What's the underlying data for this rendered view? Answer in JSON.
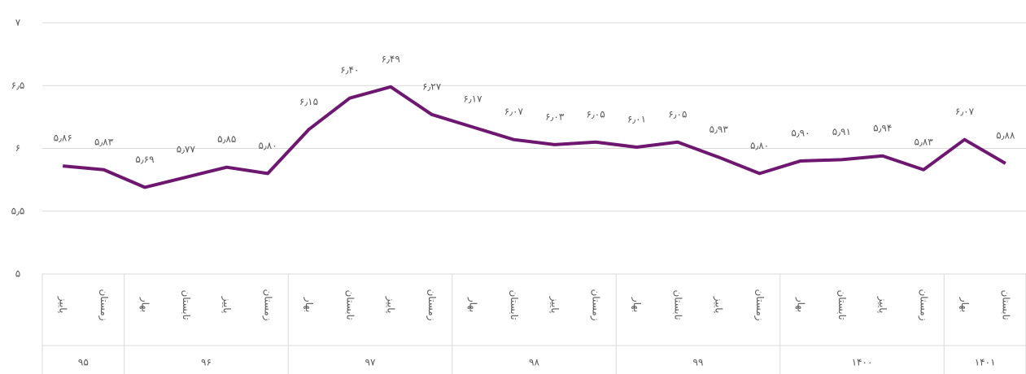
{
  "chart_data": {
    "type": "line",
    "color": "#6e1770",
    "groups": [
      {
        "name": "۹۵",
        "categories": [
          "پاییز",
          "زمستان"
        ]
      },
      {
        "name": "۹۶",
        "categories": [
          "بهار",
          "تابستان",
          "پاییز",
          "زمستان"
        ]
      },
      {
        "name": "۹۷",
        "categories": [
          "بهار",
          "تابستان",
          "پاییز",
          "زمستان"
        ]
      },
      {
        "name": "۹۸",
        "categories": [
          "بهار",
          "تابستان",
          "پاییز",
          "زمستان"
        ]
      },
      {
        "name": "۹۹",
        "categories": [
          "بهار",
          "تابستان",
          "پاییز",
          "زمستان"
        ]
      },
      {
        "name": "۱۴۰۰",
        "categories": [
          "بهار",
          "تابستان",
          "پاییز",
          "زمستان"
        ]
      },
      {
        "name": "۱۴۰۱",
        "categories": [
          "بهار",
          "تابستان"
        ]
      }
    ],
    "values": [
      5.86,
      5.83,
      5.69,
      5.77,
      5.85,
      5.8,
      6.15,
      6.4,
      6.49,
      6.27,
      6.17,
      6.07,
      6.03,
      6.05,
      6.01,
      6.05,
      5.93,
      5.8,
      5.9,
      5.91,
      5.94,
      5.83,
      6.07,
      5.88
    ],
    "value_labels": [
      "۵٫۸۶",
      "۵٫۸۳",
      "۵٫۶۹",
      "۵٫۷۷",
      "۵٫۸۵",
      "۵٫۸۰",
      "۶٫۱۵",
      "۶٫۴۰",
      "۶٫۴۹",
      "۶٫۲۷",
      "۶٫۱۷",
      "۶٫۰۷",
      "۶٫۰۳",
      "۶٫۰۵",
      "۶٫۰۱",
      "۶٫۰۵",
      "۵٫۹۳",
      "۵٫۸۰",
      "۵٫۹۰",
      "۵٫۹۱",
      "۵٫۹۴",
      "۵٫۸۳",
      "۶٫۰۷",
      "۵٫۸۸"
    ],
    "ylim": [
      5,
      7
    ],
    "yticks": [
      {
        "value": 5,
        "label": "۵"
      },
      {
        "value": 5.5,
        "label": "۵٫۵"
      },
      {
        "value": 6,
        "label": "۶"
      },
      {
        "value": 6.5,
        "label": "۶٫۵"
      },
      {
        "value": 7,
        "label": "۷"
      }
    ],
    "grid": true
  }
}
